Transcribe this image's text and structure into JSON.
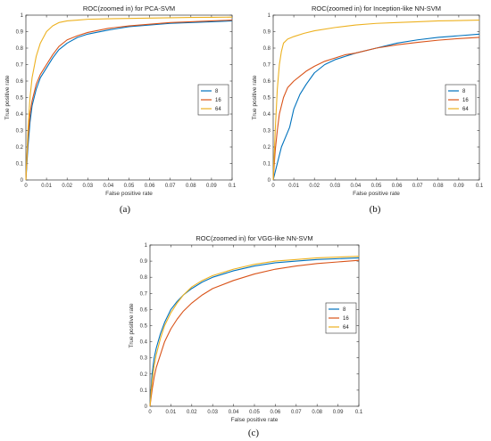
{
  "chart_data": [
    {
      "type": "line",
      "panel_label": "(a)",
      "title": "ROC(zoomed in) for PCA-SVM",
      "xlabel": "False positive rate",
      "ylabel": "True positive rate",
      "xlim": [
        0,
        0.1
      ],
      "ylim": [
        0,
        1
      ],
      "xticks": [
        "0",
        "0.01",
        "0.02",
        "0.03",
        "0.04",
        "0.05",
        "0.06",
        "0.07",
        "0.08",
        "0.09",
        "0.1"
      ],
      "yticks": [
        "0",
        "0.1",
        "0.2",
        "0.3",
        "0.4",
        "0.5",
        "0.6",
        "0.7",
        "0.8",
        "0.9",
        "1"
      ],
      "legend_position": "right",
      "grid": false,
      "series": [
        {
          "name": "8",
          "color": "#0072BD",
          "x": [
            0,
            0.001,
            0.002,
            0.003,
            0.005,
            0.007,
            0.01,
            0.013,
            0.016,
            0.02,
            0.025,
            0.03,
            0.04,
            0.05,
            0.06,
            0.07,
            0.08,
            0.09,
            0.1
          ],
          "y": [
            0,
            0.2,
            0.35,
            0.45,
            0.55,
            0.62,
            0.68,
            0.74,
            0.79,
            0.83,
            0.865,
            0.885,
            0.91,
            0.93,
            0.94,
            0.95,
            0.955,
            0.96,
            0.965
          ]
        },
        {
          "name": "16",
          "color": "#D95319",
          "x": [
            0,
            0.001,
            0.002,
            0.003,
            0.005,
            0.007,
            0.01,
            0.013,
            0.016,
            0.02,
            0.025,
            0.03,
            0.04,
            0.05,
            0.06,
            0.07,
            0.08,
            0.09,
            0.1
          ],
          "y": [
            0,
            0.25,
            0.4,
            0.48,
            0.58,
            0.64,
            0.7,
            0.76,
            0.81,
            0.85,
            0.875,
            0.895,
            0.92,
            0.935,
            0.945,
            0.955,
            0.96,
            0.965,
            0.97
          ]
        },
        {
          "name": "64",
          "color": "#EDB120",
          "x": [
            0,
            0.001,
            0.002,
            0.003,
            0.005,
            0.007,
            0.01,
            0.013,
            0.016,
            0.02,
            0.025,
            0.03,
            0.04,
            0.05,
            0.06,
            0.07,
            0.08,
            0.09,
            0.1
          ],
          "y": [
            0,
            0.3,
            0.5,
            0.62,
            0.75,
            0.83,
            0.9,
            0.935,
            0.955,
            0.965,
            0.97,
            0.975,
            0.978,
            0.98,
            0.982,
            0.984,
            0.986,
            0.987,
            0.988
          ]
        }
      ]
    },
    {
      "type": "line",
      "panel_label": "(b)",
      "title": "ROC(zoomed in) for Inception-like NN-SVM",
      "xlabel": "False positive rate",
      "ylabel": "True positive rate",
      "xlim": [
        0,
        0.1
      ],
      "ylim": [
        0,
        1
      ],
      "xticks": [
        "0",
        "0.01",
        "0.02",
        "0.03",
        "0.04",
        "0.05",
        "0.06",
        "0.07",
        "0.08",
        "0.09",
        "0.1"
      ],
      "yticks": [
        "0",
        "0.1",
        "0.2",
        "0.3",
        "0.4",
        "0.5",
        "0.6",
        "0.7",
        "0.8",
        "0.9",
        "1"
      ],
      "legend_position": "right",
      "grid": false,
      "series": [
        {
          "name": "8",
          "color": "#0072BD",
          "x": [
            0,
            0.002,
            0.004,
            0.006,
            0.008,
            0.01,
            0.013,
            0.016,
            0.02,
            0.025,
            0.03,
            0.035,
            0.04,
            0.05,
            0.06,
            0.07,
            0.08,
            0.09,
            0.1
          ],
          "y": [
            0,
            0.1,
            0.2,
            0.26,
            0.32,
            0.43,
            0.52,
            0.58,
            0.65,
            0.7,
            0.73,
            0.75,
            0.77,
            0.8,
            0.83,
            0.85,
            0.865,
            0.875,
            0.885
          ]
        },
        {
          "name": "16",
          "color": "#D95319",
          "x": [
            0,
            0.001,
            0.002,
            0.003,
            0.005,
            0.007,
            0.01,
            0.013,
            0.016,
            0.02,
            0.025,
            0.03,
            0.035,
            0.04,
            0.05,
            0.06,
            0.07,
            0.08,
            0.09,
            0.1
          ],
          "y": [
            0,
            0.18,
            0.3,
            0.4,
            0.5,
            0.56,
            0.6,
            0.63,
            0.66,
            0.69,
            0.72,
            0.74,
            0.76,
            0.77,
            0.8,
            0.82,
            0.835,
            0.848,
            0.858,
            0.865
          ]
        },
        {
          "name": "64",
          "color": "#EDB120",
          "x": [
            0,
            0.001,
            0.002,
            0.003,
            0.004,
            0.005,
            0.007,
            0.01,
            0.015,
            0.02,
            0.03,
            0.04,
            0.05,
            0.06,
            0.07,
            0.08,
            0.09,
            0.1
          ],
          "y": [
            0,
            0.3,
            0.55,
            0.7,
            0.78,
            0.83,
            0.855,
            0.87,
            0.89,
            0.905,
            0.925,
            0.94,
            0.95,
            0.955,
            0.96,
            0.965,
            0.967,
            0.97
          ]
        }
      ]
    },
    {
      "type": "line",
      "panel_label": "(c)",
      "title": "ROC(zoomed in) for VGG-like NN-SVM",
      "xlabel": "False positive rate",
      "ylabel": "True positive rate",
      "xlim": [
        0,
        0.1
      ],
      "ylim": [
        0,
        1
      ],
      "xticks": [
        "0",
        "0.01",
        "0.02",
        "0.03",
        "0.04",
        "0.05",
        "0.06",
        "0.07",
        "0.08",
        "0.09",
        "0.1"
      ],
      "yticks": [
        "0",
        "0.1",
        "0.2",
        "0.3",
        "0.4",
        "0.5",
        "0.6",
        "0.7",
        "0.8",
        "0.9",
        "1"
      ],
      "legend_position": "right",
      "grid": false,
      "series": [
        {
          "name": "8",
          "color": "#0072BD",
          "x": [
            0,
            0.001,
            0.002,
            0.003,
            0.005,
            0.007,
            0.01,
            0.013,
            0.016,
            0.02,
            0.025,
            0.03,
            0.04,
            0.05,
            0.06,
            0.07,
            0.08,
            0.09,
            0.1
          ],
          "y": [
            0,
            0.2,
            0.3,
            0.36,
            0.45,
            0.52,
            0.6,
            0.65,
            0.69,
            0.73,
            0.77,
            0.8,
            0.84,
            0.87,
            0.89,
            0.9,
            0.91,
            0.915,
            0.92
          ]
        },
        {
          "name": "16",
          "color": "#D95319",
          "x": [
            0,
            0.001,
            0.002,
            0.003,
            0.005,
            0.007,
            0.01,
            0.013,
            0.016,
            0.02,
            0.025,
            0.03,
            0.04,
            0.05,
            0.06,
            0.07,
            0.08,
            0.09,
            0.1
          ],
          "y": [
            0,
            0.1,
            0.18,
            0.24,
            0.32,
            0.4,
            0.48,
            0.54,
            0.59,
            0.64,
            0.69,
            0.73,
            0.78,
            0.82,
            0.85,
            0.87,
            0.885,
            0.895,
            0.905
          ]
        },
        {
          "name": "64",
          "color": "#EDB120",
          "x": [
            0,
            0.001,
            0.002,
            0.003,
            0.005,
            0.007,
            0.01,
            0.013,
            0.016,
            0.02,
            0.025,
            0.03,
            0.04,
            0.05,
            0.06,
            0.07,
            0.08,
            0.09,
            0.1
          ],
          "y": [
            0,
            0.15,
            0.25,
            0.32,
            0.42,
            0.5,
            0.58,
            0.64,
            0.69,
            0.74,
            0.78,
            0.81,
            0.85,
            0.88,
            0.9,
            0.91,
            0.92,
            0.925,
            0.93
          ]
        }
      ]
    }
  ]
}
